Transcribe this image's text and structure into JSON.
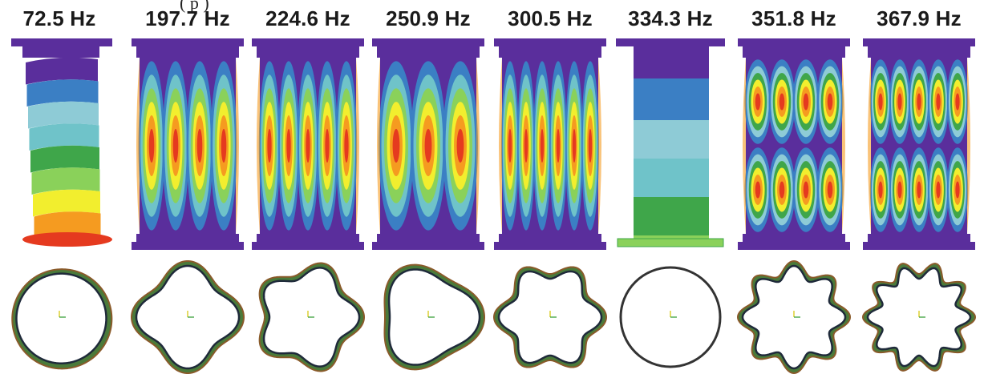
{
  "caption_fragment": "(          p        )",
  "colors": {
    "purple": "#5a2e9c",
    "blue": "#3b7fc4",
    "lightblue": "#8ecbd6",
    "cyan": "#6fc3c9",
    "green": "#3fa64a",
    "lightgreen": "#8ad15a",
    "yellow": "#f2ee2e",
    "orange": "#f59b20",
    "red": "#e53a1f",
    "dark_ring": "#1f2a3a",
    "ring_inner_green": "#4a7a3a",
    "ring_brown": "#8a5a2a"
  },
  "modes": [
    {
      "label": "72.5 Hz",
      "kind": "beam",
      "circ": 1
    },
    {
      "label": "197.7 Hz",
      "kind": "shell",
      "axial": 1,
      "lobes": 4,
      "circ": 4
    },
    {
      "label": "224.6 Hz",
      "kind": "shell",
      "axial": 1,
      "lobes": 5,
      "circ": 5
    },
    {
      "label": "250.9 Hz",
      "kind": "shell",
      "axial": 1,
      "lobes": 3,
      "circ": 3
    },
    {
      "label": "300.5 Hz",
      "kind": "shell",
      "axial": 1,
      "lobes": 6,
      "circ": 6
    },
    {
      "label": "334.3 Hz",
      "kind": "axial",
      "circ": 0
    },
    {
      "label": "351.8 Hz",
      "kind": "shell",
      "axial": 2,
      "lobes": 4,
      "circ": 8
    },
    {
      "label": "367.9 Hz",
      "kind": "shell",
      "axial": 2,
      "lobes": 5,
      "circ": 10
    }
  ]
}
